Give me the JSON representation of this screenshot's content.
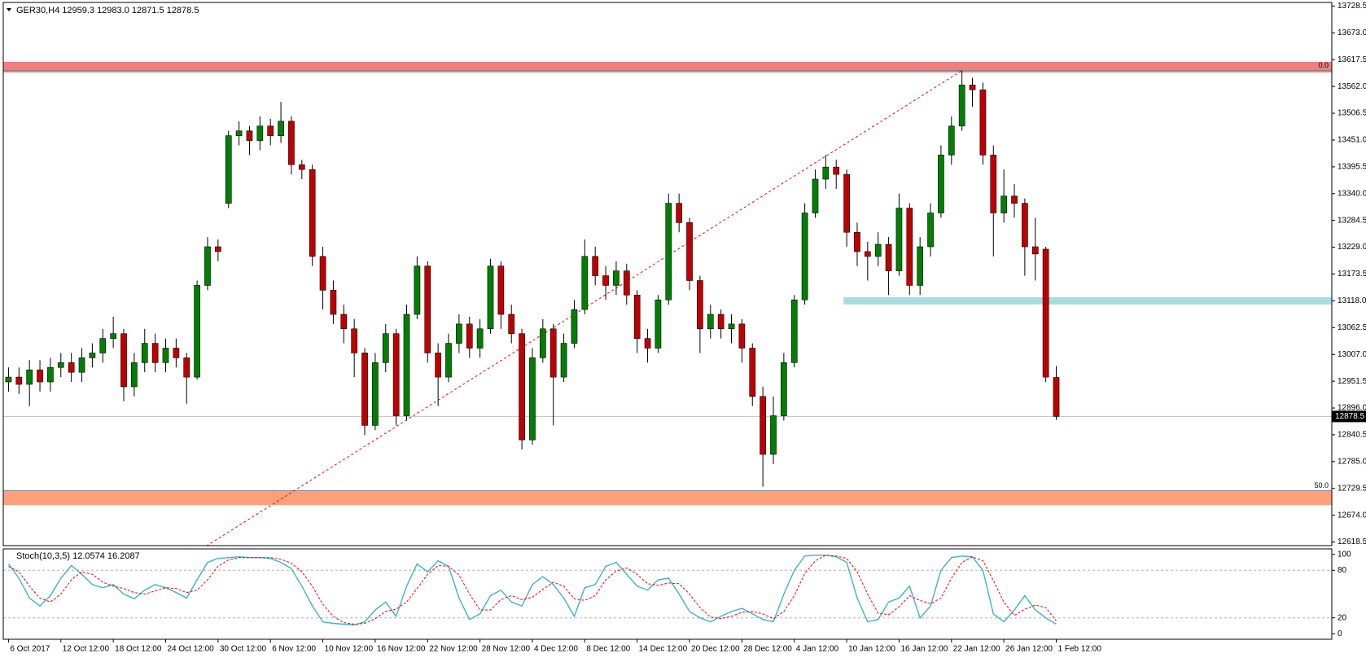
{
  "chart_data": [
    {
      "type": "candlestick",
      "title": "GER30,H4  12959.3 12983.0 12871.5 12878.5",
      "bull_color": "#008000",
      "bear_color": "#c00000",
      "wick_color": "#000000",
      "ylim": [
        12611,
        13736
      ],
      "yticks": [
        {
          "value": 13728.5,
          "label": "13728.5"
        },
        {
          "value": 13673,
          "label": "13673.0"
        },
        {
          "value": 13617.5,
          "label": "13617.5"
        },
        {
          "value": 13562,
          "label": "13562.0"
        },
        {
          "value": 13506.5,
          "label": "13506.5"
        },
        {
          "value": 13451,
          "label": "13451.0"
        },
        {
          "value": 13395.5,
          "label": "13395.5"
        },
        {
          "value": 13340,
          "label": "13340.0"
        },
        {
          "value": 13284.5,
          "label": "13284.5"
        },
        {
          "value": 13229,
          "label": "13229.0"
        },
        {
          "value": 13173.5,
          "label": "13173.5"
        },
        {
          "value": 13118,
          "label": "13118.0"
        },
        {
          "value": 13062.5,
          "label": "13062.5"
        },
        {
          "value": 13007,
          "label": "13007.0"
        },
        {
          "value": 12951.5,
          "label": "12951.5"
        },
        {
          "value": 12896,
          "label": "12896.0"
        },
        {
          "value": 12840.5,
          "label": "12840.5"
        },
        {
          "value": 12785,
          "label": "12785.0"
        },
        {
          "value": 12729.5,
          "label": "12729.5"
        },
        {
          "value": 12674,
          "label": "12674.0"
        },
        {
          "value": 12618.5,
          "label": "12618.5"
        }
      ],
      "xlim": [
        -0.5,
        126.3
      ],
      "xticks": [
        {
          "value": 0,
          "label": "6 Oct 2017"
        },
        {
          "value": 5,
          "label": "12 Oct 12:00"
        },
        {
          "value": 10,
          "label": "18 Oct 12:00"
        },
        {
          "value": 15,
          "label": "24 Oct 12:00"
        },
        {
          "value": 20,
          "label": "30 Oct 12:00"
        },
        {
          "value": 25,
          "label": "6 Nov 12:00"
        },
        {
          "value": 30,
          "label": "10 Nov 12:00"
        },
        {
          "value": 35,
          "label": "16 Nov 12:00"
        },
        {
          "value": 40,
          "label": "22 Nov 12:00"
        },
        {
          "value": 45,
          "label": "28 Nov 12:00"
        },
        {
          "value": 50,
          "label": "4 Dec 12:00"
        },
        {
          "value": 55,
          "label": "8 Dec 12:00"
        },
        {
          "value": 60,
          "label": "14 Dec 12:00"
        },
        {
          "value": 65,
          "label": "20 Dec 12:00"
        },
        {
          "value": 70,
          "label": "28 Dec 12:00"
        },
        {
          "value": 75,
          "label": "4 Jan 12:00"
        },
        {
          "value": 80,
          "label": "10 Jan 12:00"
        },
        {
          "value": 85,
          "label": "16 Jan 12:00"
        },
        {
          "value": 90,
          "label": "22 Jan 12:00"
        },
        {
          "value": 95,
          "label": "26 Jan 12:00"
        },
        {
          "value": 100,
          "label": "1 Feb 12:00"
        }
      ],
      "open": [
        12950,
        12960,
        12945,
        12975,
        12950,
        12980,
        12990,
        12970,
        13000,
        13010,
        13040,
        13050,
        12940,
        12990,
        13030,
        12990,
        13020,
        13000,
        12960,
        13150,
        13230,
        13320,
        13460,
        13470,
        13450,
        13480,
        13460,
        13490,
        13400,
        13390,
        13210,
        13140,
        13090,
        13060,
        13010,
        12860,
        12990,
        13050,
        12880,
        13090,
        13190,
        13010,
        12960,
        13030,
        13070,
        13020,
        13060,
        13190,
        13090,
        13050,
        12830,
        13000,
        13060,
        12960,
        13030,
        13100,
        13210,
        13170,
        13150,
        13180,
        13130,
        13040,
        13020,
        13120,
        13320,
        13280,
        13160,
        13060,
        13090,
        13060,
        13070,
        13020,
        12920,
        12800,
        12880,
        12990,
        13120,
        13300,
        13370,
        13395,
        13380,
        13260,
        13220,
        13210,
        13235,
        13180,
        13310,
        13150,
        13230,
        13300,
        13420,
        13480,
        13565,
        13555,
        13420,
        13300,
        13335,
        13320,
        13230,
        13225,
        12959.3
      ],
      "high": [
        12980,
        12980,
        12995,
        12995,
        13000,
        13010,
        13010,
        13020,
        13030,
        13060,
        13085,
        13060,
        13010,
        13060,
        13050,
        13040,
        13040,
        13010,
        13160,
        13250,
        13245,
        13470,
        13490,
        13480,
        13500,
        13495,
        13530,
        13500,
        13410,
        13400,
        13230,
        13160,
        13110,
        13080,
        13020,
        13010,
        13070,
        13060,
        13110,
        13210,
        13200,
        13030,
        13050,
        13090,
        13085,
        13080,
        13205,
        13200,
        13110,
        13060,
        13020,
        13080,
        13070,
        13050,
        13120,
        13245,
        13230,
        13190,
        13200,
        13195,
        13140,
        13060,
        13130,
        13340,
        13340,
        13290,
        13170,
        13110,
        13100,
        13090,
        13080,
        13030,
        12940,
        12920,
        13010,
        13130,
        13320,
        13390,
        13420,
        13410,
        13390,
        13280,
        13240,
        13260,
        13250,
        13340,
        13320,
        13250,
        13320,
        13440,
        13500,
        13595,
        13580,
        13570,
        13440,
        13390,
        13360,
        13330,
        13290,
        13230,
        12983
      ],
      "low": [
        12930,
        12925,
        12900,
        12930,
        12930,
        12960,
        12950,
        12950,
        12980,
        12990,
        13020,
        12910,
        12920,
        12970,
        12970,
        12970,
        12980,
        12905,
        12955,
        13140,
        13200,
        13310,
        13440,
        13420,
        13430,
        13440,
        13445,
        13380,
        13370,
        13190,
        13100,
        13070,
        13030,
        12960,
        12840,
        12850,
        12970,
        12860,
        12870,
        13080,
        12990,
        12900,
        12950,
        13010,
        13000,
        13000,
        13050,
        13060,
        13030,
        12810,
        12820,
        12990,
        12860,
        12950,
        13020,
        13090,
        13150,
        13120,
        13130,
        13110,
        13010,
        12990,
        13010,
        13110,
        13260,
        13140,
        13010,
        13040,
        13040,
        13030,
        12990,
        12900,
        12733,
        12780,
        12870,
        12980,
        13110,
        13290,
        13350,
        13350,
        13230,
        13190,
        13160,
        13190,
        13130,
        13170,
        13130,
        13130,
        13210,
        13290,
        13400,
        13470,
        13520,
        13400,
        13210,
        13280,
        13290,
        13170,
        13160,
        12950,
        12871.5
      ],
      "close": [
        12960,
        12945,
        12975,
        12950,
        12980,
        12990,
        12970,
        13000,
        13010,
        13040,
        13050,
        12940,
        12990,
        13030,
        12990,
        13020,
        13000,
        12960,
        13150,
        13230,
        13220,
        13460,
        13470,
        13450,
        13480,
        13460,
        13490,
        13400,
        13390,
        13210,
        13140,
        13090,
        13060,
        13010,
        12860,
        12990,
        13050,
        12880,
        13090,
        13190,
        13010,
        12960,
        13030,
        13070,
        13020,
        13060,
        13190,
        13090,
        13050,
        12830,
        13000,
        13060,
        12960,
        13030,
        13100,
        13210,
        13170,
        13150,
        13180,
        13130,
        13040,
        13020,
        13120,
        13320,
        13280,
        13160,
        13060,
        13090,
        13060,
        13070,
        13020,
        12920,
        12800,
        12880,
        12990,
        13120,
        13300,
        13370,
        13395,
        13380,
        13260,
        13220,
        13210,
        13235,
        13180,
        13310,
        13150,
        13230,
        13300,
        13420,
        13480,
        13565,
        13555,
        13420,
        13300,
        13335,
        13320,
        13230,
        13215,
        12960,
        12878.5
      ],
      "zones": [
        {
          "from": 13591,
          "to": 13613,
          "color": "#f08080"
        },
        {
          "from": 12695,
          "to": 12724,
          "color": "#ffa07a"
        }
      ],
      "support_line": {
        "value": 13118,
        "from": 79.7,
        "color": "#a6dce2"
      },
      "fib_levels": [
        {
          "value": 13595,
          "label": "0.0"
        },
        {
          "value": 12725,
          "label": "50.0"
        }
      ],
      "trendline": {
        "from": [
          18.5,
          12605
        ],
        "to": [
          91,
          13595
        ],
        "color": "#ff0000"
      },
      "last_price_line_color": "#c0c0c0"
    },
    {
      "type": "line",
      "title": "Stoch(10,3,5) 12.0574 16.2087",
      "ylim": [
        -7,
        107
      ],
      "yticks": [
        0,
        20,
        80,
        100
      ],
      "levels": [
        20,
        80
      ],
      "series": [
        {
          "name": "Main",
          "color": "#3cb4c8",
          "dash": false,
          "values": [
            88,
            70,
            45,
            35,
            48,
            70,
            86,
            75,
            62,
            58,
            62,
            50,
            44,
            55,
            62,
            58,
            52,
            45,
            68,
            90,
            95,
            96,
            97,
            96,
            96,
            95,
            90,
            82,
            60,
            35,
            15,
            13,
            12,
            11,
            15,
            30,
            40,
            22,
            60,
            88,
            78,
            92,
            85,
            45,
            18,
            25,
            48,
            55,
            40,
            35,
            62,
            72,
            62,
            45,
            22,
            58,
            62,
            85,
            90,
            75,
            60,
            55,
            68,
            70,
            50,
            28,
            20,
            15,
            22,
            28,
            32,
            25,
            18,
            15,
            50,
            80,
            98,
            99,
            99,
            97,
            90,
            45,
            15,
            18,
            40,
            45,
            60,
            20,
            35,
            80,
            96,
            98,
            97,
            80,
            25,
            15,
            30,
            48,
            30,
            20,
            12.0574
          ]
        },
        {
          "name": "Signal",
          "color": "#ff0000",
          "dash": true,
          "values": [
            85,
            78,
            60,
            45,
            40,
            50,
            68,
            78,
            75,
            65,
            60,
            57,
            52,
            50,
            54,
            58,
            57,
            52,
            55,
            68,
            85,
            93,
            96,
            96,
            96,
            96,
            94,
            89,
            78,
            60,
            37,
            22,
            14,
            12,
            13,
            19,
            28,
            31,
            40,
            57,
            75,
            86,
            85,
            74,
            50,
            30,
            30,
            43,
            48,
            43,
            46,
            56,
            65,
            60,
            44,
            42,
            48,
            68,
            79,
            83,
            75,
            63,
            61,
            64,
            63,
            50,
            33,
            21,
            19,
            22,
            27,
            28,
            25,
            19,
            28,
            48,
            76,
            92,
            99,
            98,
            95,
            78,
            50,
            26,
            24,
            34,
            48,
            42,
            38,
            45,
            70,
            90,
            97,
            92,
            67,
            40,
            23,
            31,
            36,
            33,
            16.2087
          ]
        }
      ]
    }
  ]
}
